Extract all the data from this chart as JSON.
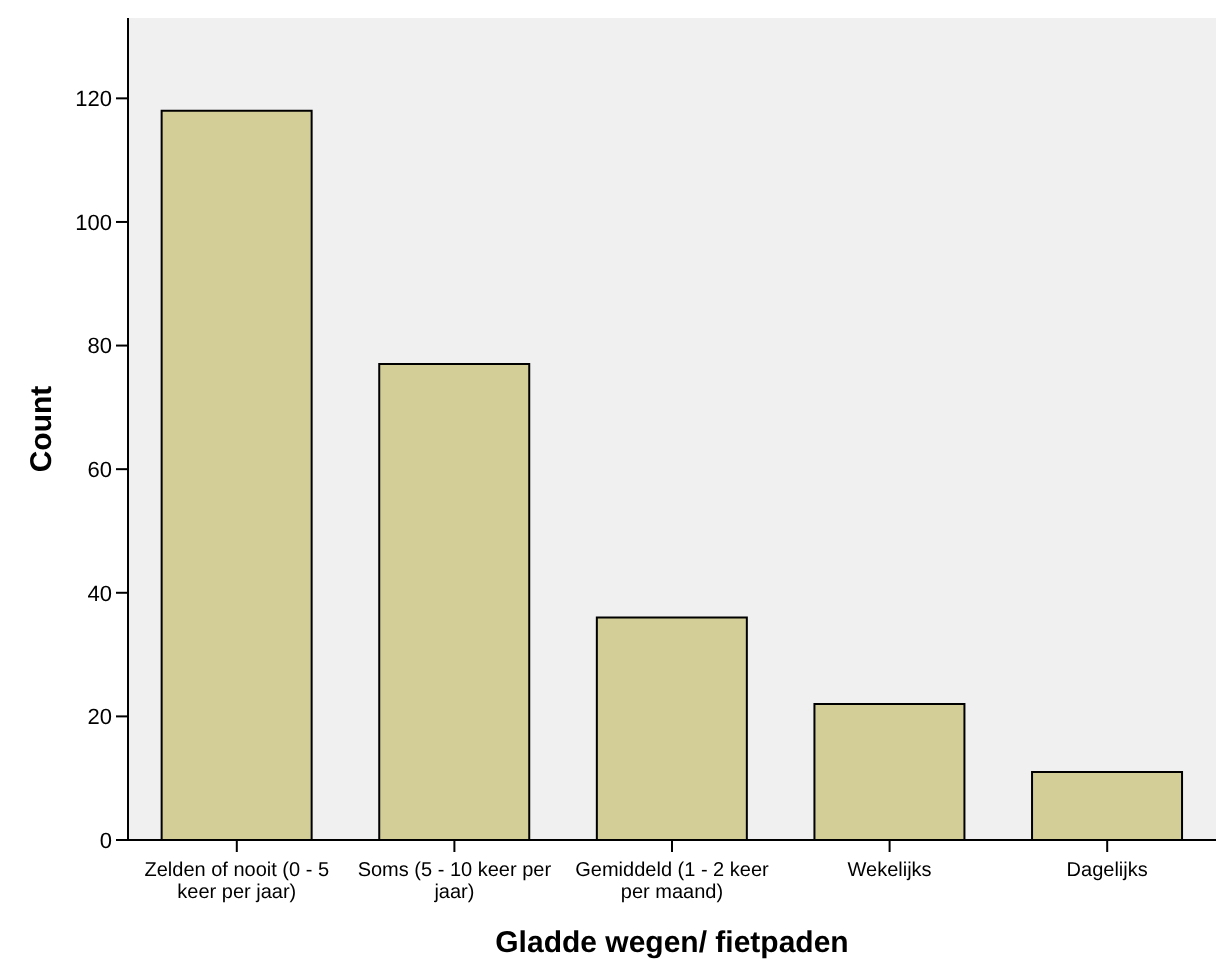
{
  "chart_data": {
    "type": "bar",
    "xlabel": "Gladde wegen/ fietpaden",
    "ylabel": "Count",
    "categories": [
      "Zelden of nooit (0 - 5 keer per jaar)",
      "Soms (5 - 10 keer per jaar)",
      "Gemiddeld (1 - 2 keer per maand)",
      "Wekelijks",
      "Dagelijks"
    ],
    "values": [
      118,
      77,
      36,
      22,
      11
    ],
    "color": "#d3ce97",
    "ylim": [
      0,
      133
    ],
    "yticks": [
      0,
      20,
      40,
      60,
      80,
      100,
      120
    ],
    "grid": false
  }
}
